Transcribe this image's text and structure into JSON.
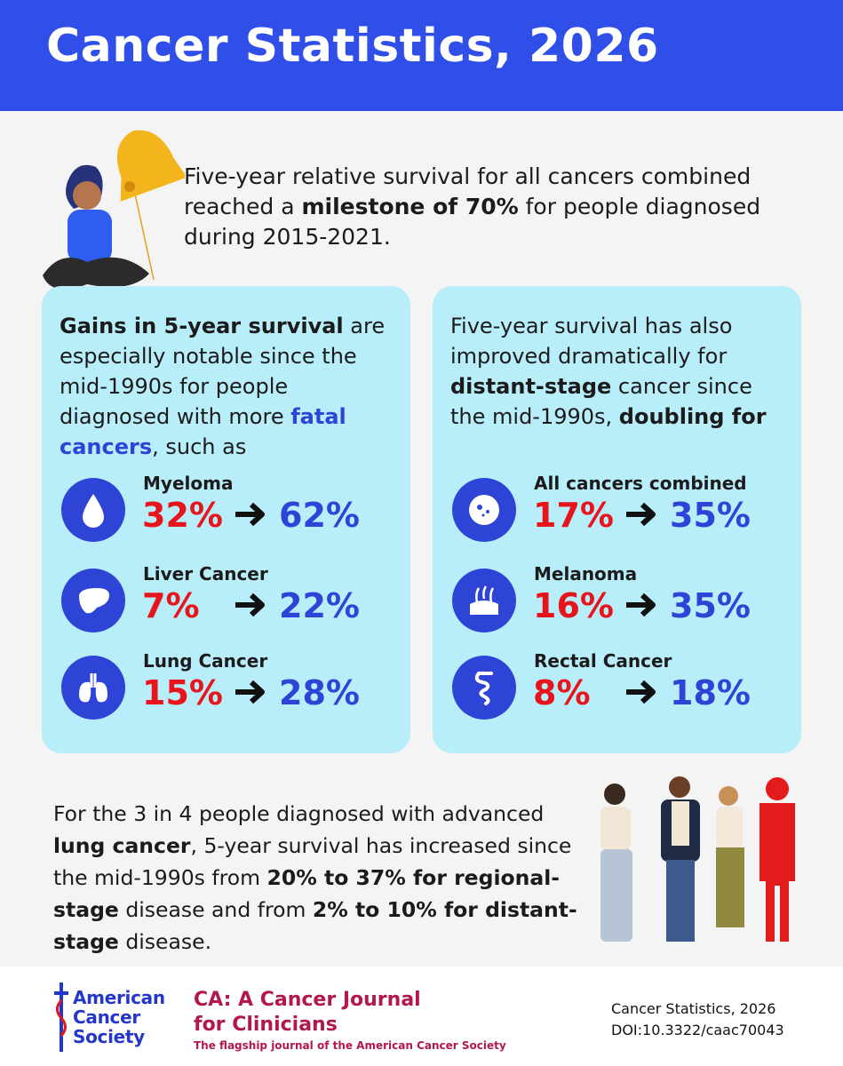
{
  "header": {
    "title": "Cancer Statistics, 2026"
  },
  "intro": {
    "segments": [
      "Five-year relative survival for all cancers combined reached a ",
      "milestone of 70%",
      " for people diagnosed during 2015-2021."
    ]
  },
  "panels": [
    {
      "heading": [
        "Gains in 5-year survival",
        " are especially notable since the mid-1990s for people diagnosed with more ",
        "fatal cancers",
        ", such as"
      ],
      "items": [
        {
          "name": "Myeloma",
          "from": "32%",
          "to": "62%"
        },
        {
          "name": "Liver Cancer",
          "from": "7%",
          "to": "22%"
        },
        {
          "name": "Lung Cancer",
          "from": "15%",
          "to": "28%"
        }
      ]
    },
    {
      "heading": [
        "Five-year survival has also improved dramatically for ",
        "distant-stage",
        " cancer since the mid-1990s, ",
        "doubling for"
      ],
      "items": [
        {
          "name": "All cancers combined",
          "from": "17%",
          "to": "35%"
        },
        {
          "name": "Melanoma",
          "from": "16%",
          "to": "35%"
        },
        {
          "name": "Rectal Cancer",
          "from": "8%",
          "to": "18%"
        }
      ]
    }
  ],
  "lung_note": {
    "segments": [
      "For the 3 in 4 people diagnosed with advanced ",
      "lung cancer",
      ", 5-year survival has increased since the mid-1990s from ",
      "20% to 37% for regional-stage",
      " disease and from ",
      "2% to 10% for distant-stage",
      " disease."
    ]
  },
  "footer": {
    "acs_logo": [
      "American",
      "Cancer",
      "Society"
    ],
    "journal_title": [
      "CA: A Cancer Journal",
      "for Clinicians"
    ],
    "journal_tagline": "The flagship journal of the American Cancer Society",
    "citation": [
      "Cancer Statistics, 2026",
      "DOI:10.3322/caac70043"
    ]
  }
}
